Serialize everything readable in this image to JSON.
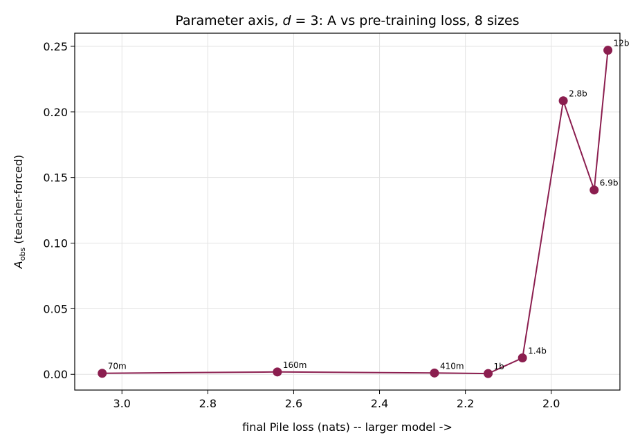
{
  "chart_data": {
    "type": "line",
    "title_prefix": "Parameter axis, ",
    "title_var": "d",
    "title_eq": " = 3",
    "title_suffix": ": A vs pre-training loss, 8 sizes",
    "xlabel": "final Pile loss (nats) -- larger model ->",
    "ylabel_main": "A",
    "ylabel_sub": "obs",
    "ylabel_rest": " (teacher-forced)",
    "xlim": [
      3.11,
      1.84
    ],
    "ylim": [
      -0.012,
      0.26
    ],
    "x_reversed": true,
    "grid": true,
    "color": "#8b1e4f",
    "x_ticks": [
      3.0,
      2.8,
      2.6,
      2.4,
      2.2,
      2.0
    ],
    "x_tick_labels": [
      "3.0",
      "2.8",
      "2.6",
      "2.4",
      "2.2",
      "2.0"
    ],
    "y_ticks": [
      0.0,
      0.05,
      0.1,
      0.15,
      0.2,
      0.25
    ],
    "y_tick_labels": [
      "0.00",
      "0.05",
      "0.10",
      "0.15",
      "0.20",
      "0.25"
    ],
    "points": [
      {
        "label": "70m",
        "x": 3.046,
        "y": 0.0008
      },
      {
        "label": "160m",
        "x": 2.638,
        "y": 0.0018
      },
      {
        "label": "410m",
        "x": 2.272,
        "y": 0.001
      },
      {
        "label": "1b",
        "x": 2.147,
        "y": 0.0006
      },
      {
        "label": "1.4b",
        "x": 2.067,
        "y": 0.0125
      },
      {
        "label": "2.8b",
        "x": 1.972,
        "y": 0.2085
      },
      {
        "label": "6.9b",
        "x": 1.9,
        "y": 0.1405
      },
      {
        "label": "12b",
        "x": 1.868,
        "y": 0.247
      }
    ]
  }
}
